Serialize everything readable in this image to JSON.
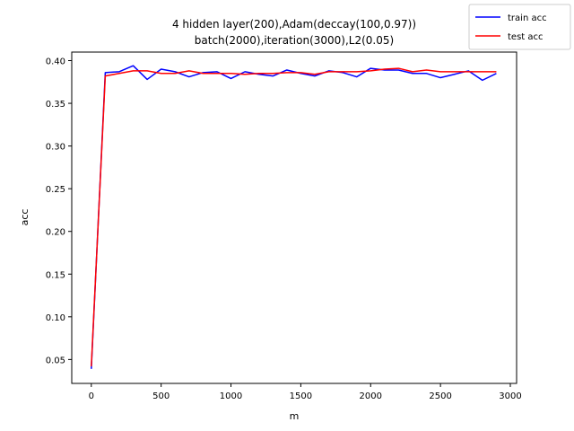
{
  "chart_data": {
    "type": "line",
    "title": [
      "4 hidden layer(200),Adam(deccay(100,0.97))",
      "batch(2000),iteration(3000),L2(0.05)"
    ],
    "xlabel": "m",
    "ylabel": "acc",
    "xlim": [
      -140,
      3045
    ],
    "ylim": [
      0.022,
      0.41
    ],
    "xticks": [
      0,
      500,
      1000,
      1500,
      2000,
      2500,
      3000
    ],
    "yticks": [
      0.05,
      0.1,
      0.15,
      0.2,
      0.25,
      0.3,
      0.35,
      0.4
    ],
    "grid": false,
    "legend_position": "top-right",
    "x": [
      0,
      100,
      200,
      300,
      400,
      500,
      600,
      700,
      800,
      900,
      1000,
      1100,
      1200,
      1300,
      1400,
      1500,
      1600,
      1700,
      1800,
      1900,
      2000,
      2100,
      2200,
      2300,
      2400,
      2500,
      2600,
      2700,
      2800,
      2900
    ],
    "series": [
      {
        "name": "train acc",
        "color": "#0000ff",
        "values": [
          0.039,
          0.386,
          0.387,
          0.394,
          0.378,
          0.39,
          0.387,
          0.381,
          0.386,
          0.387,
          0.379,
          0.387,
          0.384,
          0.382,
          0.389,
          0.385,
          0.382,
          0.388,
          0.386,
          0.381,
          0.391,
          0.389,
          0.389,
          0.385,
          0.385,
          0.38,
          0.384,
          0.388,
          0.377,
          0.385
        ]
      },
      {
        "name": "test acc",
        "color": "#ff0000",
        "values": [
          0.042,
          0.382,
          0.385,
          0.388,
          0.388,
          0.385,
          0.385,
          0.388,
          0.385,
          0.385,
          0.385,
          0.384,
          0.385,
          0.385,
          0.386,
          0.386,
          0.384,
          0.387,
          0.387,
          0.387,
          0.388,
          0.39,
          0.391,
          0.387,
          0.389,
          0.387,
          0.387,
          0.387,
          0.387,
          0.387
        ]
      }
    ]
  }
}
